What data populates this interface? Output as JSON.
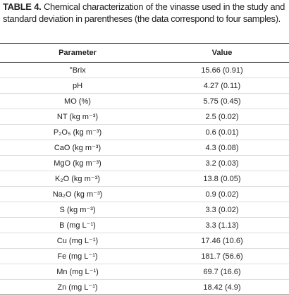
{
  "caption": {
    "label": "TABLE 4.",
    "text": "Chemical characterization of the vinasse used in the study and standard deviation in parentheses (the data correspond to four samples)."
  },
  "table": {
    "headers": [
      "Parameter",
      "Value"
    ],
    "rows": [
      [
        "°Brix",
        "15.66 (0.91)"
      ],
      [
        "pH",
        "4.27 (0.11)"
      ],
      [
        "MO (%)",
        "5.75 (0.45)"
      ],
      [
        "NT (kg m⁻³)",
        "2.5 (0.02)"
      ],
      [
        "P₂O₅ (kg m⁻³)",
        "0.6 (0.01)"
      ],
      [
        "CaO (kg m⁻³)",
        "4.3 (0.08)"
      ],
      [
        "MgO (kg m⁻³)",
        "3.2 (0.03)"
      ],
      [
        "K₂O (kg m⁻³)",
        "13.8 (0.05)"
      ],
      [
        "Na₂O (kg m⁻³)",
        "0.9 (0.02)"
      ],
      [
        "S (kg m⁻³)",
        "3.3 (0.02)"
      ],
      [
        "B (mg L⁻¹)",
        "3.3 (1.13)"
      ],
      [
        "Cu (mg L⁻¹)",
        "17.46 (10.6)"
      ],
      [
        "Fe (mg L⁻¹)",
        "181.7 (56.6)"
      ],
      [
        "Mn (mg L⁻¹)",
        "69.7 (16.6)"
      ],
      [
        "Zn (mg L⁻¹)",
        "18.42 (4.9)"
      ]
    ]
  }
}
